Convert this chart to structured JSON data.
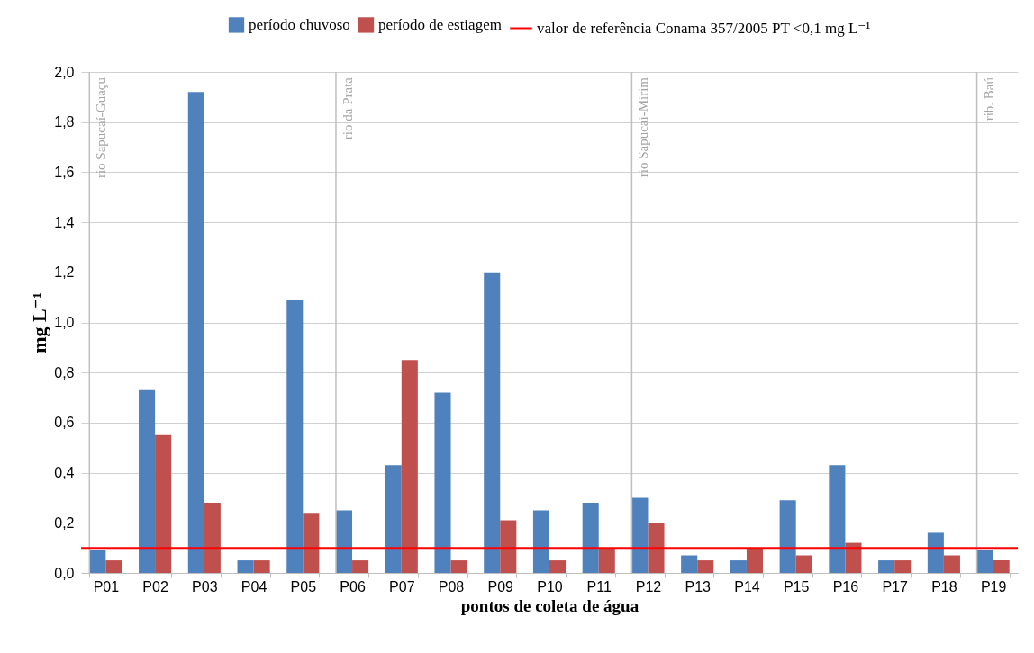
{
  "chart_data": {
    "type": "bar",
    "xlabel": "pontos de coleta de água",
    "ylabel": "mg L⁻¹",
    "categories": [
      "P01",
      "P02",
      "P03",
      "P04",
      "P05",
      "P06",
      "P07",
      "P08",
      "P09",
      "P10",
      "P11",
      "P12",
      "P13",
      "P14",
      "P15",
      "P16",
      "P17",
      "P18",
      "P19"
    ],
    "series": [
      {
        "name": "período chuvoso",
        "color": "#4f81bd",
        "values": [
          0.09,
          0.73,
          1.92,
          0.05,
          1.09,
          0.25,
          0.43,
          0.72,
          1.2,
          0.25,
          0.28,
          0.3,
          0.07,
          0.05,
          0.29,
          0.43,
          0.05,
          0.16,
          0.09
        ]
      },
      {
        "name": "período de estiagem",
        "color": "#c0504d",
        "values": [
          0.05,
          0.55,
          0.28,
          0.05,
          0.24,
          0.05,
          0.85,
          0.05,
          0.21,
          0.05,
          0.1,
          0.2,
          0.05,
          0.1,
          0.07,
          0.12,
          0.05,
          0.07,
          0.05
        ]
      }
    ],
    "ylim": [
      0,
      2
    ],
    "yticks": [
      {
        "value": 0,
        "label": "0,0"
      },
      {
        "value": 0.2,
        "label": "0,2"
      },
      {
        "value": 0.4,
        "label": "0,4"
      },
      {
        "value": 0.6,
        "label": "0,6"
      },
      {
        "value": 0.8,
        "label": "0,8"
      },
      {
        "value": 1,
        "label": "1,0"
      },
      {
        "value": 1.2,
        "label": "1,2"
      },
      {
        "value": 1.4,
        "label": "1,4"
      },
      {
        "value": 1.6,
        "label": "1,6"
      },
      {
        "value": 1.8,
        "label": "1,8"
      },
      {
        "value": 2,
        "label": "2,0"
      }
    ],
    "ref_lines": [
      {
        "axis": "y",
        "value": 0.1,
        "label": "valor de referência Conama 357/2005 PT <0,1 mg L⁻¹",
        "color": "#ff0000"
      },
      {
        "axis": "x",
        "value": "P01",
        "label": "rio Sapucaí-Guaçu",
        "color": "#bfbfbf"
      },
      {
        "axis": "x",
        "value": "P06",
        "label": "rio da Prata",
        "color": "#bfbfbf"
      },
      {
        "axis": "x",
        "value": "P12",
        "label": "rio Sapucaí-Mirim",
        "color": "#bfbfbf"
      },
      {
        "axis": "x",
        "value": "P19",
        "label": "rib. Baú",
        "color": "#bfbfbf"
      }
    ],
    "grid": "y",
    "legend": "top"
  }
}
